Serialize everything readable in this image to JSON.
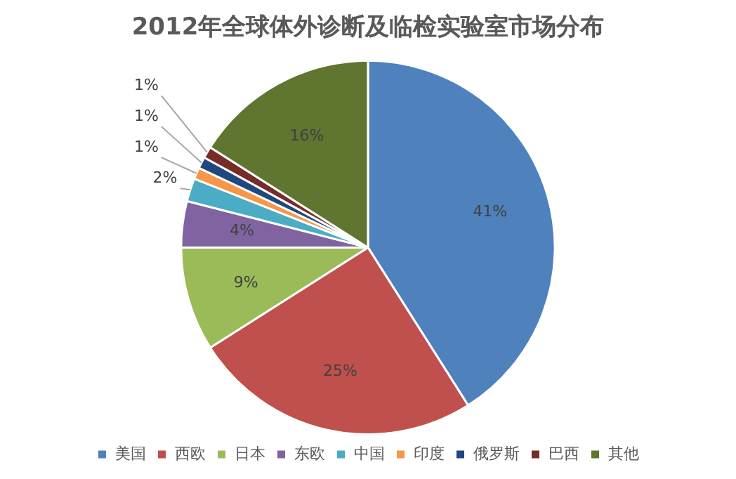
{
  "chart_data": {
    "type": "pie",
    "title": "2012年全球体外诊断及临检实验室市场分布",
    "categories": [
      "美国",
      "西欧",
      "日本",
      "东欧",
      "中国",
      "印度",
      "俄罗斯",
      "巴西",
      "其他"
    ],
    "values": [
      41,
      25,
      9,
      4,
      2,
      1,
      1,
      1,
      16
    ],
    "colors": [
      "#4f81bd",
      "#c0504d",
      "#9bbb59",
      "#8064a2",
      "#4bacc6",
      "#f79646",
      "#1f497d",
      "#772c2a",
      "#5f7530"
    ],
    "value_labels": [
      "41%",
      "25%",
      "9%",
      "4%",
      "2%",
      "1%",
      "1%",
      "1%",
      "16%"
    ],
    "legend": "bottom"
  }
}
